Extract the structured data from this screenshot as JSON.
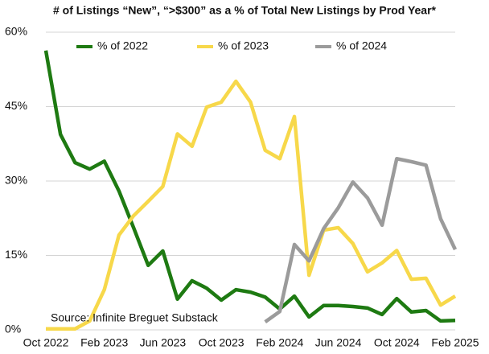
{
  "chart_data": {
    "type": "line",
    "title": "# of Listings “New”, “>$300” as a % of Total New Listings by Prod Year*",
    "annotation": "Source: Infinite Breguet Substack",
    "categories": [
      "Oct 2022",
      null,
      null,
      null,
      "Feb 2023",
      null,
      null,
      null,
      "Jun 2023",
      null,
      null,
      null,
      "Oct 2023",
      null,
      null,
      null,
      "Feb 2024",
      null,
      null,
      null,
      "Jun 2024",
      null,
      null,
      null,
      "Oct 2024",
      null,
      null,
      null,
      "Feb 2025"
    ],
    "series": [
      {
        "name": "% of 2022",
        "color": "#1e7a12",
        "values": [
          56.3,
          39.4,
          33.7,
          32.4,
          34,
          28,
          20.6,
          13,
          15.9,
          6.2,
          9.9,
          8.4,
          6,
          8.1,
          7.6,
          6.6,
          4.2,
          6.8,
          2.6,
          4.9,
          4.9,
          4.7,
          4.4,
          3.1,
          6.3,
          3.6,
          3.9,
          1.8,
          1.9
        ]
      },
      {
        "name": "% of 2023",
        "color": "#f7d84a",
        "values": [
          0.2,
          0.2,
          0.2,
          1.8,
          8.1,
          19.1,
          23,
          25.9,
          28.9,
          39.5,
          37,
          44.9,
          45.9,
          50.1,
          45.9,
          36.2,
          34.5,
          43,
          11,
          20.1,
          20.6,
          17.4,
          11.7,
          13.5,
          16,
          10.2,
          10.4,
          5,
          6.8
        ]
      },
      {
        "name": "% of 2024",
        "color": "#9b9b9b",
        "values": [
          null,
          null,
          null,
          null,
          null,
          null,
          null,
          null,
          null,
          null,
          null,
          null,
          null,
          null,
          null,
          1.6,
          3.7,
          17.2,
          13.9,
          20.4,
          24.6,
          29.8,
          26.6,
          21.1,
          34.5,
          33.9,
          33.2,
          22.4,
          16.2
        ]
      }
    ],
    "ylim": [
      0,
      60
    ],
    "yticks": [
      {
        "value": 0,
        "label": "0%"
      },
      {
        "value": 15,
        "label": "15%"
      },
      {
        "value": 30,
        "label": "30%"
      },
      {
        "value": 45,
        "label": "45%"
      },
      {
        "value": 60,
        "label": "60%"
      }
    ],
    "grid": true
  }
}
